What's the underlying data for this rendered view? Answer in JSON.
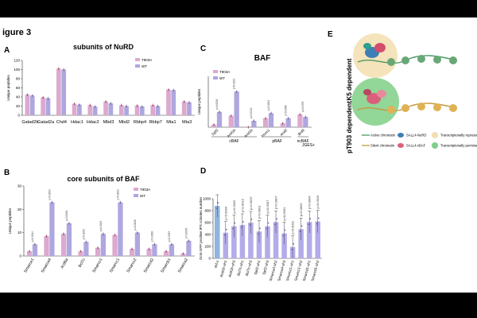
{
  "figure_label": "igure 3",
  "colors": {
    "t903a": "#dca9cf",
    "wt": "#aea7df",
    "pink": "#f0b8d9",
    "lavender": "#b3acea",
    "blue": "#8fb4de",
    "purpleDot": "#7a5da8",
    "redDot": "#c0336a"
  },
  "panelA": {
    "letter": "A",
    "title": "subunits of NuRD",
    "ylabel": "Unique peptides",
    "legend": [
      "T903A",
      "WT"
    ],
    "chart_data": {
      "type": "bar",
      "categories": [
        "Gatad2b",
        "Gatad2a",
        "Chd4",
        "Hdac1",
        "Hdac2",
        "Mbd3",
        "Mbd2",
        "Rbbp4",
        "Rbbp7",
        "Mta1",
        "Mta3"
      ],
      "ylim": [
        0,
        120
      ],
      "yticks": [
        "0",
        "20",
        "40",
        "60",
        "80",
        "100",
        "120"
      ],
      "series": [
        {
          "name": "T903A",
          "values": [
            45,
            39,
            102,
            25,
            22,
            30,
            22,
            21,
            22,
            56,
            30
          ]
        },
        {
          "name": "WT",
          "values": [
            43,
            37,
            100,
            23,
            19,
            26,
            20,
            19,
            20,
            55,
            28
          ]
        }
      ]
    }
  },
  "panelB": {
    "letter": "B",
    "title": "core subunits of BAF",
    "ylabel": "Unique peptides",
    "legend": [
      "T903A",
      "WT"
    ],
    "chart_data": {
      "type": "bar",
      "categories": [
        "Smarce1",
        "Smarca4",
        "Actl6a",
        "Bcl7c",
        "Smarcc1",
        "Smarcc1",
        "Smarcc2",
        "Smarcd2",
        "Smarcb1",
        "Smarca2"
      ],
      "ylim": [
        0,
        30
      ],
      "yticks": [
        "0",
        "10",
        "20",
        "30"
      ],
      "series": [
        {
          "name": "T903A",
          "values": [
            2,
            8.5,
            9.5,
            2,
            3.5,
            9,
            3,
            3,
            2,
            1
          ]
        },
        {
          "name": "WT",
          "values": [
            5,
            23,
            14,
            6,
            9.5,
            23,
            10,
            5,
            5,
            6.5
          ]
        }
      ],
      "annotations": [
        "p=0.0114",
        "p<0.0001",
        "p=0.0004",
        "p=0.0052",
        "p=0.0013",
        "p<0.0001",
        "p=0.0006",
        "p=0.0008",
        "p=0.0353",
        "p=0.0035"
      ]
    }
  },
  "panelC": {
    "letter": "C",
    "title": "BAF",
    "ylabel": "Unique peptides",
    "legend": [
      "T903A",
      "WT"
    ],
    "footer": "JGES+",
    "chart_data": {
      "type": "bar",
      "categories": [
        "Dpf2",
        "Arid1b",
        "Arid1b",
        "Phrm1",
        "Arid2",
        "Brd9"
      ],
      "groups": [
        {
          "name": "cBAF",
          "span": [
            0,
            2
          ]
        },
        {
          "name": "pBAF",
          "span": [
            3,
            4
          ]
        },
        {
          "name": "ncBAF",
          "span": [
            5,
            5
          ]
        }
      ],
      "ylim": [
        0,
        40
      ],
      "series": [
        {
          "name": "T903A",
          "values": [
            2,
            9,
            0,
            7,
            3,
            10
          ]
        },
        {
          "name": "WT",
          "values": [
            12,
            28,
            5,
            11,
            7,
            8
          ]
        }
      ],
      "annotations": [
        "p<0.0001",
        "p=0.0021",
        "p=0.0249",
        "p=0.0261",
        "p=0.0368",
        "p=0.0353"
      ]
    }
  },
  "panelD": {
    "letter": "D",
    "ylabel": "Oct4-GFP positive iPS colonies number",
    "chart_data": {
      "type": "bar",
      "categories": [
        "shLu",
        "Arid1b-sh1",
        "Arid1b-sh3",
        "Bcl7c-sh1",
        "Bcl7c-sh3",
        "Dpf2-sh1",
        "Dpf2-sh3",
        "Smarca4-sh2",
        "Smarca4-sh3",
        "Smarcc1-sh1",
        "Smarcc1-sh2",
        "Smarcd1-sh1",
        "Smarcd1-sh2"
      ],
      "ylim": [
        0,
        1000
      ],
      "yticks": [
        "0",
        "200",
        "400",
        "600",
        "800",
        "1000"
      ],
      "values": [
        880,
        430,
        540,
        560,
        600,
        450,
        540,
        610,
        420,
        190,
        490,
        610,
        620
      ],
      "annotations": [
        "",
        "p=0.0003",
        "p=0.0032",
        "p=0.0010",
        "p=0.0007",
        "p=0.0001",
        "p=0.0007",
        "p=0.0007",
        "p<0.0001",
        "p<0.0001",
        "p=0.0002",
        "p=0.0004",
        "p=0.0019"
      ]
    }
  },
  "panelE": {
    "letter": "E",
    "vlabel_top": "K5 dependent",
    "vlabel_bottom": "pT903 dependent",
    "legend": [
      {
        "label": "Active chromatin",
        "kind": "active"
      },
      {
        "label": "SALL4-NuRD",
        "kind": "nurd"
      },
      {
        "label": "Transcriptionally repressive niche",
        "kind": "repressive"
      },
      {
        "label": "Silent chromatin",
        "kind": "silent"
      },
      {
        "label": "SALL4-cBAF",
        "kind": "cbaf"
      },
      {
        "label": "Transcriptionally permissive niche",
        "kind": "permissive"
      }
    ]
  }
}
